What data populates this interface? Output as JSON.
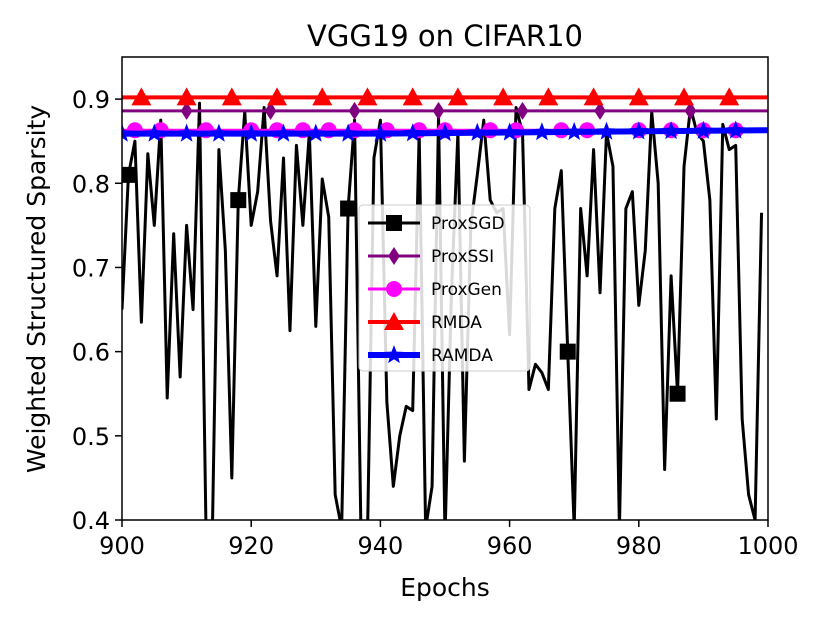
{
  "chart_data": {
    "type": "line",
    "title": "VGG19 on CIFAR10",
    "xlabel": "Epochs",
    "ylabel": "Weighted Structured Sparsity",
    "xlim": [
      900,
      1000
    ],
    "ylim": [
      0.4,
      0.95
    ],
    "xticks": [
      900,
      920,
      940,
      960,
      980,
      1000
    ],
    "yticks": [
      0.4,
      0.5,
      0.6,
      0.7,
      0.8,
      0.9
    ],
    "xtick_labels": [
      "900",
      "920",
      "940",
      "960",
      "980",
      "1000"
    ],
    "ytick_labels": [
      "0.4",
      "0.5",
      "0.6",
      "0.7",
      "0.8",
      "0.9"
    ],
    "legend_position": "center",
    "series": [
      {
        "name": "ProxSGD",
        "color": "#000000",
        "marker": "square",
        "marker_x": [
          901,
          918,
          935,
          969,
          986
        ],
        "x": [
          900,
          901,
          902,
          903,
          904,
          905,
          906,
          907,
          908,
          909,
          910,
          911,
          912,
          913,
          914,
          915,
          916,
          917,
          918,
          919,
          920,
          921,
          922,
          923,
          924,
          925,
          926,
          927,
          928,
          929,
          930,
          931,
          932,
          933,
          934,
          935,
          936,
          937,
          938,
          939,
          940,
          941,
          942,
          943,
          944,
          945,
          946,
          947,
          948,
          949,
          950,
          951,
          952,
          953,
          954,
          955,
          956,
          957,
          958,
          959,
          960,
          961,
          962,
          963,
          964,
          965,
          966,
          967,
          968,
          969,
          970,
          971,
          972,
          973,
          974,
          975,
          976,
          977,
          978,
          979,
          980,
          981,
          982,
          983,
          984,
          985,
          986,
          987,
          988,
          989,
          990,
          991,
          992,
          993,
          994,
          995,
          996,
          997,
          998,
          999
        ],
        "values": [
          0.65,
          0.81,
          0.85,
          0.635,
          0.835,
          0.75,
          0.875,
          0.545,
          0.74,
          0.57,
          0.75,
          0.65,
          0.895,
          0.39,
          0.39,
          0.84,
          0.72,
          0.45,
          0.78,
          0.885,
          0.75,
          0.79,
          0.89,
          0.755,
          0.69,
          0.83,
          0.625,
          0.845,
          0.75,
          0.86,
          0.63,
          0.805,
          0.76,
          0.43,
          0.39,
          0.77,
          0.875,
          0.38,
          0.38,
          0.83,
          0.875,
          0.54,
          0.44,
          0.5,
          0.535,
          0.53,
          0.86,
          0.39,
          0.44,
          0.88,
          0.38,
          0.67,
          0.86,
          0.47,
          0.75,
          0.81,
          0.875,
          0.78,
          0.765,
          0.77,
          0.62,
          0.89,
          0.86,
          0.555,
          0.585,
          0.575,
          0.555,
          0.77,
          0.815,
          0.6,
          0.39,
          0.77,
          0.69,
          0.84,
          0.67,
          0.86,
          0.82,
          0.39,
          0.77,
          0.79,
          0.655,
          0.72,
          0.885,
          0.8,
          0.46,
          0.69,
          0.55,
          0.82,
          0.89,
          0.86,
          0.85,
          0.78,
          0.52,
          0.87,
          0.84,
          0.845,
          0.52,
          0.43,
          0.4,
          0.765
        ]
      },
      {
        "name": "ProxSSI",
        "color": "#800080",
        "marker": "diamond",
        "constant": 0.886,
        "marker_x": [
          910,
          923,
          936,
          949,
          962,
          974,
          988
        ]
      },
      {
        "name": "ProxGen",
        "color": "#ff00ff",
        "marker": "circle",
        "constant": 0.863,
        "marker_x": [
          902,
          906,
          913,
          920,
          924,
          928,
          932,
          936,
          941,
          946,
          950,
          957,
          961,
          968,
          972,
          980,
          985,
          990,
          995
        ]
      },
      {
        "name": "RMDA",
        "color": "#ff0000",
        "marker": "triangle",
        "constant": 0.902,
        "marker_x": [
          903,
          910,
          917,
          924,
          931,
          938,
          945,
          952,
          959,
          966,
          973,
          980,
          987,
          994
        ]
      },
      {
        "name": "RAMDA",
        "color": "#0000ff",
        "marker": "star",
        "x": [
          900,
          940,
          1000
        ],
        "values": [
          0.859,
          0.859,
          0.863
        ],
        "marker_x": [
          900,
          905,
          910,
          915,
          920,
          925,
          930,
          935,
          940,
          945,
          950,
          955,
          960,
          965,
          970,
          975,
          980,
          985,
          990,
          995
        ]
      }
    ]
  }
}
